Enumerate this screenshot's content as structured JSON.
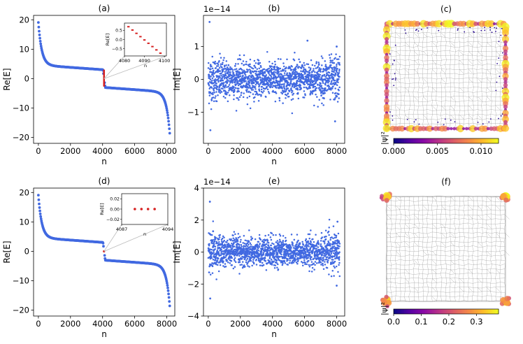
{
  "chart_data": [
    {
      "id": "a",
      "panel_label": "(a)",
      "type": "scatter",
      "xlabel": "n",
      "ylabel": "Re[E]",
      "xlim": [
        -300,
        8500
      ],
      "ylim": [
        -22,
        21.5
      ],
      "xticks": [
        0,
        2000,
        4000,
        6000,
        8000
      ],
      "yticks": [
        -20,
        -10,
        0,
        10,
        20
      ],
      "xtick_labels": [
        "0",
        "2000",
        "4000",
        "6000",
        "8000"
      ],
      "ytick_labels": [
        "−20",
        "−10",
        "0",
        "10",
        "20"
      ],
      "series_color": "#4169e1",
      "highlight_color": "#d62020",
      "inset": {
        "xlim": [
          4080,
          4101
        ],
        "ylim": [
          -0.9,
          0.9
        ],
        "xticks": [
          4080,
          4090,
          4100
        ],
        "yticks": [
          -0.5,
          0.0,
          0.5
        ],
        "xtick_labels": [
          "4080",
          "4090",
          "4100"
        ],
        "ytick_labels": [
          "−0.5",
          "0.0",
          "0.5"
        ],
        "xlabel": "n",
        "ylabel": "Re[E]"
      }
    },
    {
      "id": "b",
      "panel_label": "(b)",
      "type": "scatter",
      "xlabel": "n",
      "ylabel": "Im[E]",
      "offset_text": "1e−14",
      "xlim": [
        -300,
        8500
      ],
      "ylim": [
        -1.95,
        1.95
      ],
      "xticks": [
        0,
        2000,
        4000,
        6000,
        8000
      ],
      "yticks": [
        -1,
        0,
        1
      ],
      "xtick_labels": [
        "0",
        "2000",
        "4000",
        "6000",
        "8000"
      ],
      "ytick_labels": [
        "−1",
        "0",
        "1"
      ],
      "series_color": "#4169e1",
      "spread": 0.3,
      "outliers": [
        [
          80,
          1.75
        ],
        [
          130,
          -1.55
        ],
        [
          6180,
          1.18
        ],
        [
          8000,
          1.0
        ],
        [
          7900,
          -1.28
        ]
      ]
    },
    {
      "id": "c",
      "panel_label": "(c)",
      "type": "heatmap",
      "colorbar_label": "|ψ|²",
      "colorbar_range": [
        0,
        0.012
      ],
      "colorbar_ticks": [
        0.0,
        0.005,
        0.01
      ],
      "colorbar_tick_labels": [
        "0.000",
        "0.005",
        "0.010"
      ],
      "colormap": "plasma",
      "state": "edge"
    },
    {
      "id": "d",
      "panel_label": "(d)",
      "type": "scatter",
      "xlabel": "n",
      "ylabel": "Re[E]",
      "xlim": [
        -300,
        8500
      ],
      "ylim": [
        -22,
        21.5
      ],
      "xticks": [
        0,
        2000,
        4000,
        6000,
        8000
      ],
      "yticks": [
        -20,
        -10,
        0,
        10,
        20
      ],
      "xtick_labels": [
        "0",
        "2000",
        "4000",
        "6000",
        "8000"
      ],
      "ytick_labels": [
        "−20",
        "−10",
        "0",
        "10",
        "20"
      ],
      "series_color": "#4169e1",
      "highlight_color": "#d62020",
      "inset": {
        "xlim": [
          4087,
          4094
        ],
        "ylim": [
          -0.03,
          0.03
        ],
        "xticks": [
          4087,
          4094
        ],
        "yticks": [
          -0.02,
          0.0,
          0.02
        ],
        "xtick_labels": [
          "4087",
          "4094"
        ],
        "ytick_labels": [
          "−0.02",
          "0.00",
          "0.02"
        ],
        "xlabel": "n",
        "ylabel": "Re[E]"
      }
    },
    {
      "id": "e",
      "panel_label": "(e)",
      "type": "scatter",
      "xlabel": "n",
      "ylabel": "Im[E]",
      "offset_text": "1e−14",
      "xlim": [
        -300,
        8500
      ],
      "ylim": [
        -4,
        4
      ],
      "xticks": [
        0,
        2000,
        4000,
        6000,
        8000
      ],
      "yticks": [
        -4,
        -2,
        0,
        2,
        4
      ],
      "xtick_labels": [
        "0",
        "2000",
        "4000",
        "6000",
        "8000"
      ],
      "ytick_labels": [
        "−4",
        "−2",
        "0",
        "2",
        "4"
      ],
      "series_color": "#4169e1",
      "spread": 0.5,
      "outliers": [
        [
          100,
          3.15
        ],
        [
          120,
          -2.9
        ],
        [
          300,
          1.3
        ],
        [
          8050,
          1.9
        ],
        [
          8000,
          -2.1
        ]
      ]
    },
    {
      "id": "f",
      "panel_label": "(f)",
      "type": "heatmap",
      "colorbar_label": "|ψ|²",
      "colorbar_range": [
        0,
        0.38
      ],
      "colorbar_ticks": [
        0.0,
        0.1,
        0.2,
        0.3
      ],
      "colorbar_tick_labels": [
        "0.0",
        "0.1",
        "0.2",
        "0.3"
      ],
      "colormap": "plasma",
      "state": "corner"
    }
  ]
}
